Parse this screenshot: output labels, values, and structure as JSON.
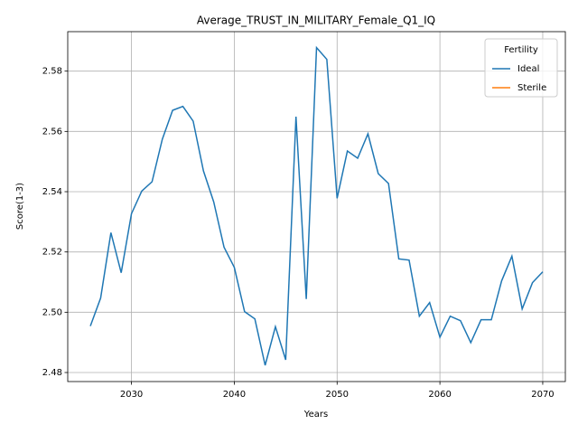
{
  "chart_data": {
    "type": "line",
    "title": "Average_TRUST_IN_MILITARY_Female_Q1_IQ",
    "x_label": "Years",
    "y_label": "Score(1-3)",
    "x": [
      2026,
      2027,
      2028,
      2029,
      2030,
      2031,
      2032,
      2033,
      2034,
      2035,
      2036,
      2037,
      2038,
      2039,
      2040,
      2041,
      2042,
      2043,
      2044,
      2045,
      2046,
      2047,
      2048,
      2049,
      2050,
      2051,
      2052,
      2053,
      2054,
      2055,
      2056,
      2057,
      2058,
      2059,
      2060,
      2061,
      2062,
      2063,
      2064,
      2065,
      2066,
      2067,
      2068,
      2069,
      2070
    ],
    "series": [
      {
        "name": "Ideal",
        "color": "#1f77b4",
        "values": [
          2.4954,
          2.5047,
          2.5264,
          2.5131,
          2.5327,
          2.5402,
          2.5433,
          2.5574,
          2.567,
          2.5683,
          2.5634,
          2.5469,
          2.5366,
          2.5216,
          2.5149,
          2.5002,
          2.4978,
          2.4824,
          2.4952,
          2.4842,
          2.5649,
          2.5044,
          2.5878,
          2.5839,
          2.5378,
          2.5535,
          2.5511,
          2.5592,
          2.546,
          2.5427,
          2.5177,
          2.5173,
          2.4987,
          2.5032,
          2.4917,
          2.4987,
          2.4972,
          2.4899,
          2.4975,
          2.4975,
          2.5104,
          2.5186,
          2.5011,
          2.5098,
          2.5134
        ]
      },
      {
        "name": "Sterile",
        "color": "#ff7f0e",
        "values": [
          null,
          null,
          null,
          null,
          null,
          null,
          null,
          null,
          null,
          null,
          null,
          null,
          null,
          null,
          null,
          null,
          null,
          null,
          null,
          null,
          null,
          null,
          null,
          null,
          null,
          null,
          null,
          null,
          null,
          null,
          null,
          null,
          null,
          null,
          null,
          null,
          null,
          null,
          null,
          null,
          null,
          null,
          null,
          null,
          null
        ]
      }
    ],
    "legend_title": "Fertility",
    "legend": "upper right",
    "xlim": [
      2023.8,
      2072.2
    ],
    "xticks": [
      2030,
      2040,
      2050,
      2060,
      2070
    ],
    "ylim": [
      2.477,
      2.5931
    ],
    "yticks": [
      2.48,
      2.5,
      2.52,
      2.54,
      2.56,
      2.58
    ],
    "grid": true
  }
}
